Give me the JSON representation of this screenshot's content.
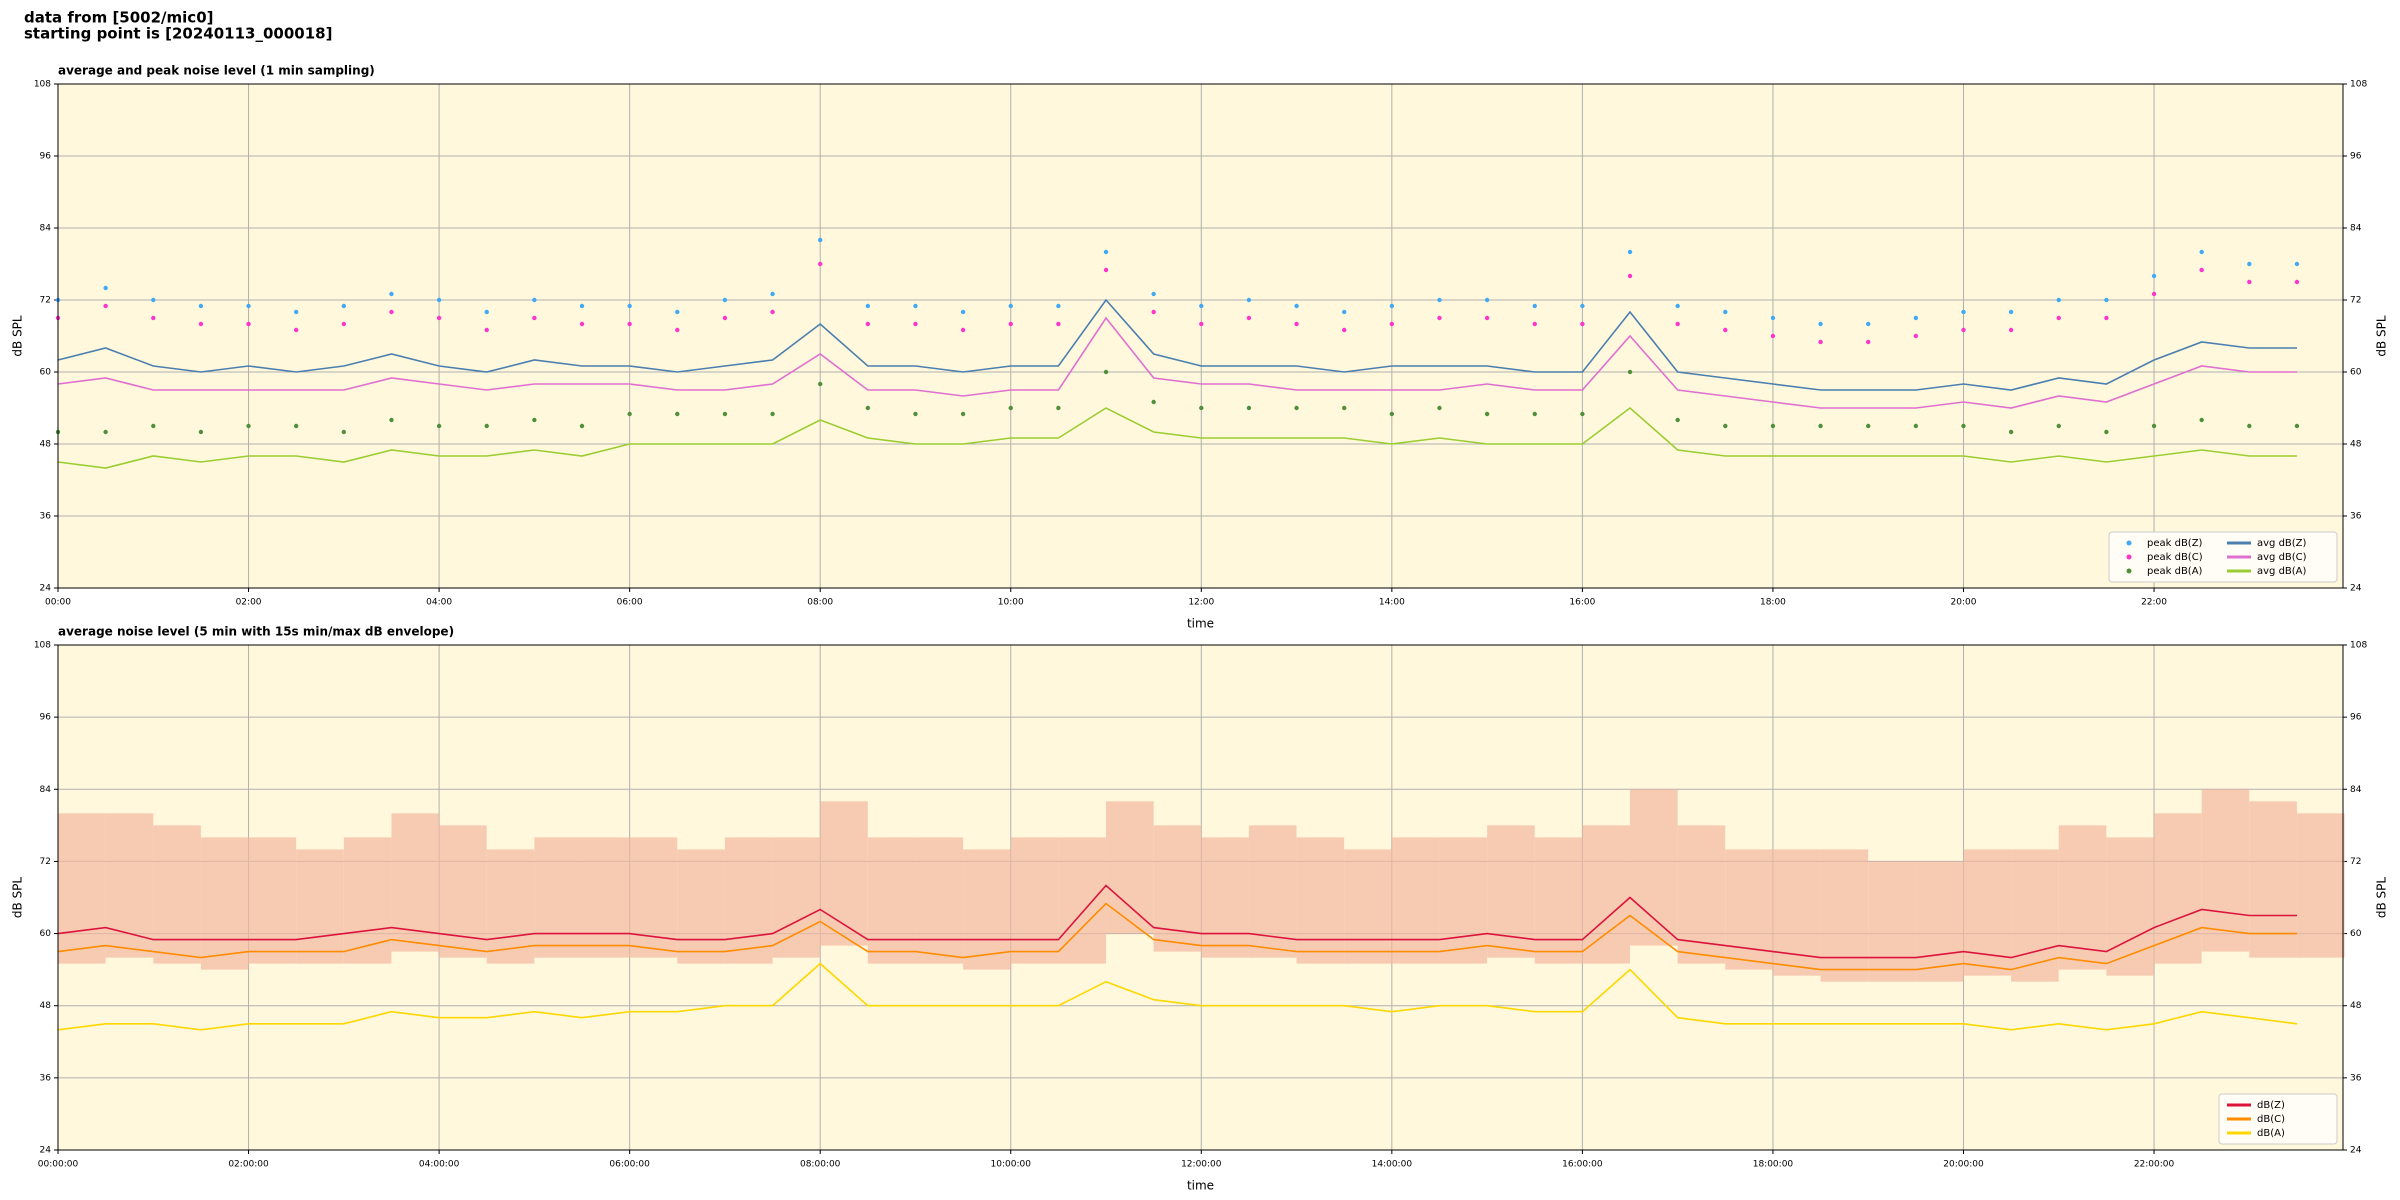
{
  "header": {
    "lines": [
      "data from [5002/mic0]",
      "starting point is [20240113_000018]"
    ]
  },
  "chart_data": [
    {
      "type": "line",
      "title": "average and peak noise level (1 min sampling)",
      "xlabel": "time",
      "ylabel": "dB SPL",
      "x": [
        "00:00",
        "00:30",
        "01:00",
        "01:30",
        "02:00",
        "02:30",
        "03:00",
        "03:30",
        "04:00",
        "04:30",
        "05:00",
        "05:30",
        "06:00",
        "06:30",
        "07:00",
        "07:30",
        "08:00",
        "08:30",
        "09:00",
        "09:30",
        "10:00",
        "10:30",
        "11:00",
        "11:30",
        "12:00",
        "12:30",
        "13:00",
        "13:30",
        "14:00",
        "14:30",
        "15:00",
        "15:30",
        "16:00",
        "16:30",
        "17:00",
        "17:30",
        "18:00",
        "18:30",
        "19:00",
        "19:30",
        "20:00",
        "20:30",
        "21:00",
        "21:30",
        "22:00",
        "22:30",
        "23:00",
        "23:30"
      ],
      "xlim": [
        "00:00",
        "23:59"
      ],
      "xticks": [
        "00:00",
        "02:00",
        "04:00",
        "06:00",
        "08:00",
        "10:00",
        "12:00",
        "14:00",
        "16:00",
        "18:00",
        "20:00",
        "22:00"
      ],
      "ylim": [
        24,
        108
      ],
      "yticks": [
        24,
        36,
        48,
        60,
        72,
        84,
        96,
        108
      ],
      "grid": true,
      "legend": "lower right",
      "legend_columns": 2,
      "background": "#fff8dc",
      "series": [
        {
          "name": "peak dB(Z)",
          "kind": "scatter",
          "color": "#3fa9f5",
          "values": [
            72,
            74,
            72,
            71,
            71,
            70,
            71,
            73,
            72,
            70,
            72,
            71,
            71,
            70,
            72,
            73,
            82,
            71,
            71,
            70,
            71,
            71,
            80,
            73,
            71,
            72,
            71,
            70,
            71,
            72,
            72,
            71,
            71,
            80,
            71,
            70,
            69,
            68,
            68,
            69,
            70,
            70,
            72,
            72,
            76,
            80,
            78,
            78
          ]
        },
        {
          "name": "peak dB(C)",
          "kind": "scatter",
          "color": "#ff33cc",
          "values": [
            69,
            71,
            69,
            68,
            68,
            67,
            68,
            70,
            69,
            67,
            69,
            68,
            68,
            67,
            69,
            70,
            78,
            68,
            68,
            67,
            68,
            68,
            77,
            70,
            68,
            69,
            68,
            67,
            68,
            69,
            69,
            68,
            68,
            76,
            68,
            67,
            66,
            65,
            65,
            66,
            67,
            67,
            69,
            69,
            73,
            77,
            75,
            75
          ]
        },
        {
          "name": "peak dB(A)",
          "kind": "scatter",
          "color": "#4f8f3a",
          "values": [
            50,
            50,
            51,
            50,
            51,
            51,
            50,
            52,
            51,
            51,
            52,
            51,
            53,
            53,
            53,
            53,
            58,
            54,
            53,
            53,
            54,
            54,
            60,
            55,
            54,
            54,
            54,
            54,
            53,
            54,
            53,
            53,
            53,
            60,
            52,
            51,
            51,
            51,
            51,
            51,
            51,
            50,
            51,
            50,
            51,
            52,
            51,
            51
          ]
        },
        {
          "name": "avg dB(Z)",
          "kind": "line",
          "color": "#4a7fb0",
          "values": [
            62,
            64,
            61,
            60,
            61,
            60,
            61,
            63,
            61,
            60,
            62,
            61,
            61,
            60,
            61,
            62,
            68,
            61,
            61,
            60,
            61,
            61,
            72,
            63,
            61,
            61,
            61,
            60,
            61,
            61,
            61,
            60,
            60,
            70,
            60,
            59,
            58,
            57,
            57,
            57,
            58,
            57,
            59,
            58,
            62,
            65,
            64,
            64
          ]
        },
        {
          "name": "avg dB(C)",
          "kind": "line",
          "color": "#e070d0",
          "values": [
            58,
            59,
            57,
            57,
            57,
            57,
            57,
            59,
            58,
            57,
            58,
            58,
            58,
            57,
            57,
            58,
            63,
            57,
            57,
            56,
            57,
            57,
            69,
            59,
            58,
            58,
            57,
            57,
            57,
            57,
            58,
            57,
            57,
            66,
            57,
            56,
            55,
            54,
            54,
            54,
            55,
            54,
            56,
            55,
            58,
            61,
            60,
            60
          ]
        },
        {
          "name": "avg dB(A)",
          "kind": "line",
          "color": "#9acd32",
          "values": [
            45,
            44,
            46,
            45,
            46,
            46,
            45,
            47,
            46,
            46,
            47,
            46,
            48,
            48,
            48,
            48,
            52,
            49,
            48,
            48,
            49,
            49,
            54,
            50,
            49,
            49,
            49,
            49,
            48,
            49,
            48,
            48,
            48,
            54,
            47,
            46,
            46,
            46,
            46,
            46,
            46,
            45,
            46,
            45,
            46,
            47,
            46,
            46
          ]
        }
      ]
    },
    {
      "type": "line",
      "title": "average noise level (5 min with 15s min/max dB envelope)",
      "xlabel": "time",
      "ylabel": "dB SPL",
      "x": [
        "00:00",
        "00:30",
        "01:00",
        "01:30",
        "02:00",
        "02:30",
        "03:00",
        "03:30",
        "04:00",
        "04:30",
        "05:00",
        "05:30",
        "06:00",
        "06:30",
        "07:00",
        "07:30",
        "08:00",
        "08:30",
        "09:00",
        "09:30",
        "10:00",
        "10:30",
        "11:00",
        "11:30",
        "12:00",
        "12:30",
        "13:00",
        "13:30",
        "14:00",
        "14:30",
        "15:00",
        "15:30",
        "16:00",
        "16:30",
        "17:00",
        "17:30",
        "18:00",
        "18:30",
        "19:00",
        "19:30",
        "20:00",
        "20:30",
        "21:00",
        "21:30",
        "22:00",
        "22:30",
        "23:00",
        "23:30"
      ],
      "xlim": [
        "00:00:00",
        "23:59:00"
      ],
      "xticks": [
        "00:00:00",
        "02:00:00",
        "04:00:00",
        "06:00:00",
        "08:00:00",
        "10:00:00",
        "12:00:00",
        "14:00:00",
        "16:00:00",
        "18:00:00",
        "20:00:00",
        "22:00:00"
      ],
      "ylim": [
        24,
        108
      ],
      "yticks": [
        24,
        36,
        48,
        60,
        72,
        84,
        96,
        108
      ],
      "grid": true,
      "legend": "lower right",
      "legend_columns": 1,
      "background": "#fff8dc",
      "envelope": {
        "color": "#f4b8a0",
        "high": [
          80,
          80,
          78,
          76,
          76,
          74,
          76,
          80,
          78,
          74,
          76,
          76,
          76,
          74,
          76,
          76,
          82,
          76,
          76,
          74,
          76,
          76,
          82,
          78,
          76,
          78,
          76,
          74,
          76,
          76,
          78,
          76,
          78,
          84,
          78,
          74,
          74,
          74,
          72,
          72,
          74,
          74,
          78,
          76,
          80,
          84,
          82,
          80
        ],
        "low": [
          55,
          56,
          55,
          54,
          55,
          55,
          55,
          57,
          56,
          55,
          56,
          56,
          56,
          55,
          55,
          56,
          58,
          55,
          55,
          54,
          55,
          55,
          60,
          57,
          56,
          56,
          55,
          55,
          55,
          55,
          56,
          55,
          55,
          58,
          55,
          54,
          53,
          52,
          52,
          52,
          53,
          52,
          54,
          53,
          55,
          57,
          56,
          56
        ]
      },
      "series": [
        {
          "name": "dB(Z)",
          "kind": "line",
          "color": "#dc143c",
          "values": [
            60,
            61,
            59,
            59,
            59,
            59,
            60,
            61,
            60,
            59,
            60,
            60,
            60,
            59,
            59,
            60,
            64,
            59,
            59,
            59,
            59,
            59,
            68,
            61,
            60,
            60,
            59,
            59,
            59,
            59,
            60,
            59,
            59,
            66,
            59,
            58,
            57,
            56,
            56,
            56,
            57,
            56,
            58,
            57,
            61,
            64,
            63,
            63
          ]
        },
        {
          "name": "dB(C)",
          "kind": "line",
          "color": "#ff8c00",
          "values": [
            57,
            58,
            57,
            56,
            57,
            57,
            57,
            59,
            58,
            57,
            58,
            58,
            58,
            57,
            57,
            58,
            62,
            57,
            57,
            56,
            57,
            57,
            65,
            59,
            58,
            58,
            57,
            57,
            57,
            57,
            58,
            57,
            57,
            63,
            57,
            56,
            55,
            54,
            54,
            54,
            55,
            54,
            56,
            55,
            58,
            61,
            60,
            60
          ]
        },
        {
          "name": "dB(A)",
          "kind": "line",
          "color": "#ffd700",
          "values": [
            44,
            45,
            45,
            44,
            45,
            45,
            45,
            47,
            46,
            46,
            47,
            46,
            47,
            47,
            48,
            48,
            55,
            48,
            48,
            48,
            48,
            48,
            52,
            49,
            48,
            48,
            48,
            48,
            47,
            48,
            48,
            47,
            47,
            54,
            46,
            45,
            45,
            45,
            45,
            45,
            45,
            44,
            45,
            44,
            45,
            47,
            46,
            45
          ]
        }
      ]
    }
  ]
}
